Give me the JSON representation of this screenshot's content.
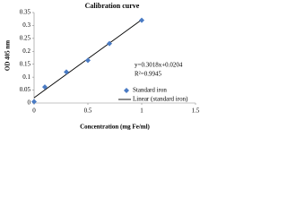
{
  "chart_data": {
    "type": "scatter",
    "title": "Calibration curve",
    "x_label": "Concentration (mg Fe/ml)",
    "y_label": "OD 405 nm",
    "series": [
      {
        "name": "Standard iron",
        "color": "#4a7bc4",
        "x": [
          0,
          0.1,
          0.3,
          0.5,
          0.7,
          1
        ],
        "values": [
          0.005,
          0.062,
          0.12,
          0.165,
          0.23,
          0.32
        ]
      }
    ],
    "trendline": {
      "name": "Linear (standard iron)",
      "color": "#000000",
      "slope": 0.3018,
      "intercept": 0.0204,
      "equation": "y=0.3018x+0.0204",
      "r2": "R²=0.9945"
    },
    "xlim": [
      0,
      1.5
    ],
    "xticks": [
      0,
      0.5,
      1,
      1.5
    ],
    "ylim": [
      0,
      0.35
    ],
    "yticks": [
      0,
      0.05,
      0.1,
      0.15,
      0.2,
      0.25,
      0.3,
      0.35
    ]
  }
}
